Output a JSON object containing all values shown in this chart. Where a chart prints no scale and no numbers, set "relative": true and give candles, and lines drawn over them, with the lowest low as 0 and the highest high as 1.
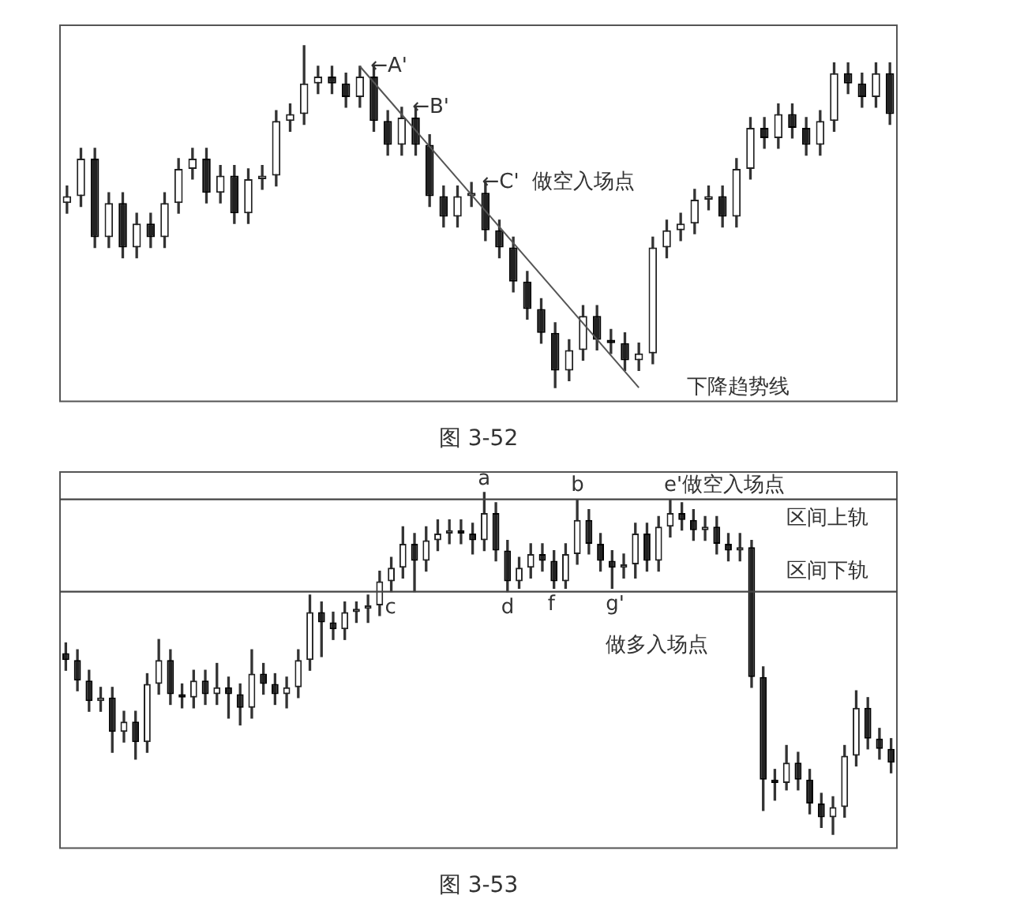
{
  "chart_data": [
    {
      "type": "candlestick",
      "relative": true,
      "title": "图 3-52",
      "categories": [
        null,
        null,
        null,
        null,
        null,
        null,
        null,
        null,
        null,
        null,
        null,
        null,
        null,
        null,
        null,
        null,
        null,
        null,
        null,
        null,
        null,
        null,
        null,
        null,
        null,
        null,
        null,
        null,
        null,
        null,
        null,
        null,
        null,
        null,
        null,
        null,
        null,
        null,
        null,
        null,
        null,
        null,
        null,
        null,
        null,
        null,
        null,
        null,
        null,
        null,
        null,
        null,
        null,
        null,
        null,
        null,
        null,
        null,
        null,
        null
      ],
      "ohlc": [
        [
          0.54,
          0.59,
          0.51,
          0.56
        ],
        [
          0.56,
          0.7,
          0.53,
          0.67
        ],
        [
          0.67,
          0.7,
          0.41,
          0.44
        ],
        [
          0.44,
          0.57,
          0.41,
          0.54
        ],
        [
          0.54,
          0.57,
          0.38,
          0.41
        ],
        [
          0.41,
          0.51,
          0.38,
          0.48
        ],
        [
          0.48,
          0.51,
          0.41,
          0.44
        ],
        [
          0.44,
          0.57,
          0.41,
          0.54
        ],
        [
          0.54,
          0.67,
          0.51,
          0.64
        ],
        [
          0.64,
          0.7,
          0.61,
          0.67
        ],
        [
          0.67,
          0.7,
          0.54,
          0.57
        ],
        [
          0.57,
          0.65,
          0.54,
          0.62
        ],
        [
          0.62,
          0.65,
          0.48,
          0.51
        ],
        [
          0.51,
          0.64,
          0.48,
          0.61
        ],
        [
          0.61,
          0.65,
          0.58,
          0.62
        ],
        [
          0.62,
          0.81,
          0.59,
          0.78
        ],
        [
          0.78,
          0.83,
          0.75,
          0.8
        ],
        [
          0.8,
          1.0,
          0.77,
          0.89
        ],
        [
          0.89,
          0.94,
          0.86,
          0.91
        ],
        [
          0.91,
          0.94,
          0.86,
          0.89
        ],
        [
          0.89,
          0.92,
          0.82,
          0.85
        ],
        [
          0.85,
          0.94,
          0.82,
          0.91
        ],
        [
          0.91,
          0.94,
          0.75,
          0.78
        ],
        [
          0.78,
          0.81,
          0.68,
          0.71
        ],
        [
          0.71,
          0.82,
          0.68,
          0.79
        ],
        [
          0.79,
          0.82,
          0.68,
          0.71
        ],
        [
          0.71,
          0.74,
          0.53,
          0.56
        ],
        [
          0.56,
          0.59,
          0.47,
          0.5
        ],
        [
          0.5,
          0.59,
          0.47,
          0.56
        ],
        [
          0.56,
          0.6,
          0.53,
          0.57
        ],
        [
          0.57,
          0.6,
          0.43,
          0.46
        ],
        [
          0.46,
          0.49,
          0.38,
          0.41
        ],
        [
          0.41,
          0.44,
          0.28,
          0.31
        ],
        [
          0.31,
          0.34,
          0.2,
          0.23
        ],
        [
          0.23,
          0.26,
          0.13,
          0.16
        ],
        [
          0.16,
          0.19,
          0.0,
          0.05
        ],
        [
          0.05,
          0.14,
          0.02,
          0.11
        ],
        [
          0.11,
          0.24,
          0.08,
          0.21
        ],
        [
          0.21,
          0.24,
          0.11,
          0.14
        ],
        [
          0.14,
          0.17,
          0.1,
          0.13
        ],
        [
          0.13,
          0.16,
          0.05,
          0.08
        ],
        [
          0.08,
          0.13,
          0.05,
          0.1
        ],
        [
          0.1,
          0.44,
          0.07,
          0.41
        ],
        [
          0.41,
          0.49,
          0.38,
          0.46
        ],
        [
          0.46,
          0.51,
          0.43,
          0.48
        ],
        [
          0.48,
          0.58,
          0.45,
          0.55
        ],
        [
          0.55,
          0.59,
          0.52,
          0.56
        ],
        [
          0.56,
          0.59,
          0.47,
          0.5
        ],
        [
          0.5,
          0.67,
          0.47,
          0.64
        ],
        [
          0.64,
          0.79,
          0.61,
          0.76
        ],
        [
          0.76,
          0.79,
          0.7,
          0.73
        ],
        [
          0.73,
          0.83,
          0.7,
          0.8
        ],
        [
          0.8,
          0.83,
          0.73,
          0.76
        ],
        [
          0.76,
          0.79,
          0.68,
          0.71
        ],
        [
          0.71,
          0.81,
          0.68,
          0.78
        ],
        [
          0.78,
          0.95,
          0.75,
          0.92
        ],
        [
          0.92,
          0.95,
          0.86,
          0.89
        ],
        [
          0.89,
          0.92,
          0.82,
          0.85
        ],
        [
          0.85,
          0.95,
          0.82,
          0.92
        ],
        [
          0.92,
          0.95,
          0.77,
          0.8
        ]
      ],
      "series": [
        {
          "type": "line",
          "color": "#555555",
          "values": [
            null,
            null,
            null,
            null,
            null,
            null,
            null,
            null,
            null,
            null,
            null,
            null,
            null,
            null,
            null,
            null,
            null,
            null,
            null,
            null,
            null,
            0.94,
            null,
            null,
            null,
            null,
            null,
            null,
            null,
            null,
            null,
            null,
            null,
            null,
            null,
            null,
            null,
            null,
            null,
            null,
            null,
            0,
            null,
            null,
            null,
            null,
            null,
            null,
            null,
            null,
            null,
            null,
            null,
            null,
            null,
            null,
            null,
            null,
            null,
            null
          ]
        }
      ],
      "annotations": [
        "←A'",
        "←B'",
        "←C'  做空入场点",
        "下降趋势线"
      ]
    },
    {
      "type": "candlestick",
      "relative": true,
      "title": "图 3-53",
      "categories": [
        null,
        null,
        null,
        null,
        null,
        null,
        null,
        null,
        null,
        null,
        null,
        null,
        null,
        null,
        null,
        null,
        null,
        null,
        null,
        null,
        null,
        null,
        null,
        null,
        null,
        null,
        null,
        null,
        null,
        null,
        null,
        null,
        null,
        null,
        null,
        null,
        null,
        null,
        null,
        null,
        null,
        null,
        null,
        null,
        null,
        null,
        null,
        null,
        null,
        null,
        null,
        null,
        null,
        null,
        null,
        null,
        null,
        null,
        null,
        null,
        null,
        null,
        null,
        null,
        null,
        null,
        null,
        null,
        null,
        null,
        null,
        null
      ],
      "ohlc": [
        [
          0.53,
          0.56,
          0.48,
          0.51
        ],
        [
          0.51,
          0.54,
          0.42,
          0.45
        ],
        [
          0.45,
          0.48,
          0.36,
          0.39
        ],
        [
          0.39,
          0.43,
          0.36,
          0.4
        ],
        [
          0.4,
          0.43,
          0.24,
          0.3
        ],
        [
          0.3,
          0.36,
          0.27,
          0.33
        ],
        [
          0.33,
          0.36,
          0.22,
          0.27
        ],
        [
          0.27,
          0.47,
          0.24,
          0.44
        ],
        [
          0.44,
          0.57,
          0.41,
          0.51
        ],
        [
          0.51,
          0.54,
          0.38,
          0.41
        ],
        [
          0.41,
          0.44,
          0.37,
          0.4
        ],
        [
          0.4,
          0.48,
          0.37,
          0.45
        ],
        [
          0.45,
          0.48,
          0.38,
          0.41
        ],
        [
          0.41,
          0.5,
          0.38,
          0.43
        ],
        [
          0.43,
          0.46,
          0.34,
          0.41
        ],
        [
          0.41,
          0.44,
          0.32,
          0.37
        ],
        [
          0.37,
          0.54,
          0.34,
          0.47
        ],
        [
          0.47,
          0.5,
          0.41,
          0.44
        ],
        [
          0.44,
          0.47,
          0.38,
          0.41
        ],
        [
          0.41,
          0.46,
          0.37,
          0.43
        ],
        [
          0.43,
          0.54,
          0.4,
          0.51
        ],
        [
          0.51,
          0.7,
          0.48,
          0.65
        ],
        [
          0.65,
          0.68,
          0.52,
          0.62
        ],
        [
          0.62,
          0.65,
          0.57,
          0.6
        ],
        [
          0.6,
          0.68,
          0.57,
          0.65
        ],
        [
          0.65,
          0.68,
          0.62,
          0.66
        ],
        [
          0.66,
          0.7,
          0.62,
          0.67
        ],
        [
          0.67,
          0.77,
          0.64,
          0.74
        ],
        [
          0.74,
          0.81,
          0.71,
          0.78
        ],
        [
          0.78,
          0.9,
          0.75,
          0.85
        ],
        [
          0.85,
          0.88,
          0.71,
          0.8
        ],
        [
          0.8,
          0.9,
          0.77,
          0.86
        ],
        [
          0.86,
          0.92,
          0.83,
          0.88
        ],
        [
          0.88,
          0.92,
          0.85,
          0.89
        ],
        [
          0.89,
          0.92,
          0.85,
          0.88
        ],
        [
          0.88,
          0.91,
          0.82,
          0.86
        ],
        [
          0.86,
          1.0,
          0.83,
          0.94
        ],
        [
          0.94,
          0.97,
          0.8,
          0.83
        ],
        [
          0.83,
          0.86,
          0.71,
          0.74
        ],
        [
          0.74,
          0.81,
          0.72,
          0.78
        ],
        [
          0.78,
          0.85,
          0.75,
          0.82
        ],
        [
          0.82,
          0.85,
          0.77,
          0.8
        ],
        [
          0.8,
          0.83,
          0.72,
          0.74
        ],
        [
          0.74,
          0.85,
          0.72,
          0.82
        ],
        [
          0.82,
          0.98,
          0.79,
          0.92
        ],
        [
          0.92,
          0.95,
          0.82,
          0.85
        ],
        [
          0.85,
          0.88,
          0.77,
          0.8
        ],
        [
          0.8,
          0.83,
          0.72,
          0.78
        ],
        [
          0.78,
          0.82,
          0.75,
          0.79
        ],
        [
          0.79,
          0.91,
          0.75,
          0.88
        ],
        [
          0.88,
          0.91,
          0.77,
          0.8
        ],
        [
          0.8,
          0.93,
          0.77,
          0.9
        ],
        [
          0.9,
          0.98,
          0.87,
          0.94
        ],
        [
          0.94,
          0.97,
          0.89,
          0.92
        ],
        [
          0.92,
          0.95,
          0.86,
          0.89
        ],
        [
          0.89,
          0.93,
          0.86,
          0.9
        ],
        [
          0.9,
          0.93,
          0.82,
          0.85
        ],
        [
          0.85,
          0.88,
          0.8,
          0.83
        ],
        [
          0.83,
          0.88,
          0.8,
          0.84
        ],
        [
          0.84,
          0.86,
          0.43,
          0.46
        ],
        [
          0.46,
          0.49,
          0.07,
          0.16
        ],
        [
          0.16,
          0.19,
          0.1,
          0.15
        ],
        [
          0.15,
          0.26,
          0.13,
          0.21
        ],
        [
          0.21,
          0.24,
          0.13,
          0.16
        ],
        [
          0.16,
          0.19,
          0.06,
          0.09
        ],
        [
          0.09,
          0.12,
          0.02,
          0.05
        ],
        [
          0.05,
          0.11,
          0.0,
          0.08
        ],
        [
          0.08,
          0.26,
          0.05,
          0.23
        ],
        [
          0.23,
          0.42,
          0.2,
          0.37
        ],
        [
          0.37,
          0.4,
          0.25,
          0.28
        ],
        [
          0.28,
          0.31,
          0.22,
          0.25
        ],
        [
          0.25,
          0.28,
          0.18,
          0.21
        ]
      ],
      "ref_lines": [
        {
          "axis": "y",
          "value": 0.98,
          "label": "区间上轨",
          "color": "#444444"
        },
        {
          "axis": "y",
          "value": 0.71,
          "label": "区间下轨",
          "color": "#444444"
        }
      ],
      "annotations": [
        "a",
        "b",
        "e'做空入场点",
        "c",
        "d",
        "f",
        "g'",
        "做多入场点"
      ]
    }
  ]
}
